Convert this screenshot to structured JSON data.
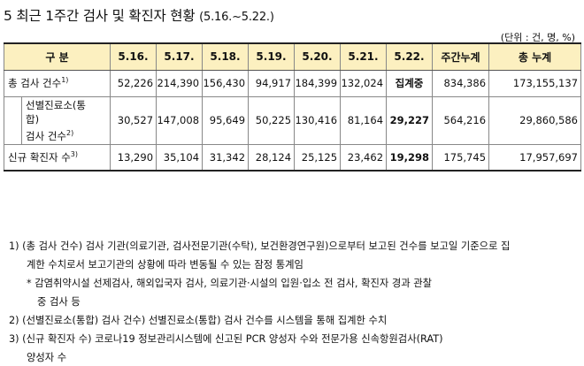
{
  "title": {
    "main": "5 최근 1주간 검사 및 확진자 현황",
    "range": "(5.16.~5.22.)"
  },
  "unit": "(단위 : 건, 명, %)",
  "table": {
    "headers": [
      "구 분",
      "5.16.",
      "5.17.",
      "5.18.",
      "5.19.",
      "5.20.",
      "5.21.",
      "5.22.",
      "주간누계",
      "총 누계"
    ],
    "rows": [
      {
        "label": "총 검사 건수",
        "sup": "1)",
        "values": [
          "52,226",
          "214,390",
          "156,430",
          "94,917",
          "184,399",
          "132,024",
          "집계중",
          "834,386",
          "173,155,137"
        ]
      },
      {
        "label_line1": "선별진료소(통",
        "label_line2": "합)",
        "label_line3": "검사 건수",
        "sup": "2)",
        "values": [
          "30,527",
          "147,008",
          "95,649",
          "50,225",
          "130,416",
          "81,164",
          "29,227",
          "564,216",
          "29,860,586"
        ]
      },
      {
        "label": "신규 확진자 수",
        "sup": "3)",
        "values": [
          "13,290",
          "35,104",
          "31,342",
          "28,124",
          "25,125",
          "23,462",
          "19,298",
          "175,745",
          "17,957,697"
        ]
      }
    ]
  },
  "notes": {
    "n1_line1": "1) (총 검사 건수) 검사 기관(의료기관, 검사전문기관(수탁), 보건환경연구원)으로부터 보고된 건수를 보고일 기준으로 집",
    "n1_line2": "계한 수치로서 보고기관의 상황에 따라 변동될 수 있는 잠정 통계임",
    "n1_star_line1": "* 감염취약시설 선제검사, 해외입국자 검사, 의료기관·시설의 입원·입소 전 검사, 확진자 경과 관찰",
    "n1_star_line2": "중 검사 등",
    "n2": "2) (선별진료소(통합) 검사 건수) 선별진료소(통합) 검사 건수를 시스템을 통해 집계한 수치",
    "n3_line1": "3) (신규 확진자 수) 코로나19 정보관리시스템에 신고된 PCR 양성자 수와 전문가용 신속항원검사(RAT)",
    "n3_line2": "양성자 수"
  }
}
